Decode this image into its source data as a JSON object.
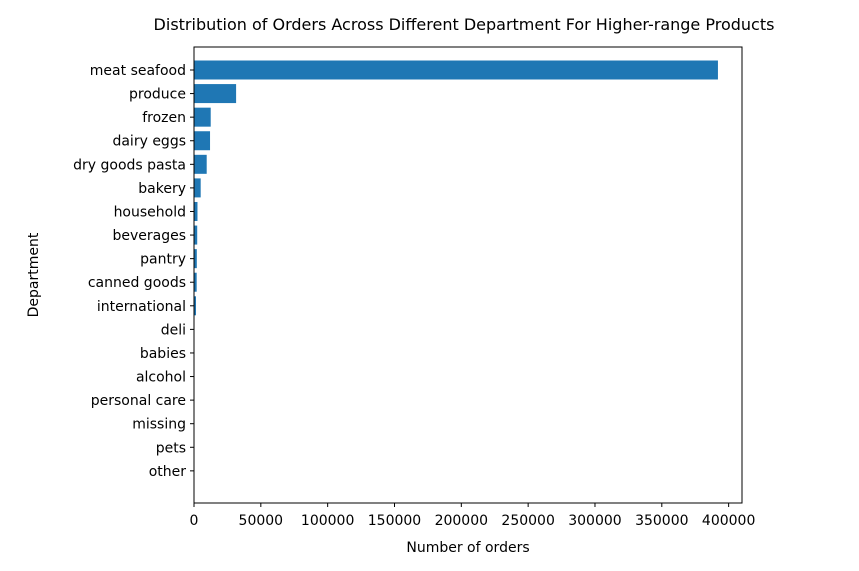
{
  "chart_data": {
    "type": "bar",
    "orientation": "horizontal",
    "title": "Distribution of Orders Across Different Department For Higher-range Products",
    "xlabel": "Number of orders",
    "ylabel": "Department",
    "xlim": [
      0,
      410000
    ],
    "x_ticks": [
      0,
      50000,
      100000,
      150000,
      200000,
      250000,
      300000,
      350000,
      400000
    ],
    "x_tick_labels": [
      "0",
      "50000",
      "100000",
      "150000",
      "200000",
      "250000",
      "300000",
      "350000",
      "400000"
    ],
    "grid": false,
    "bar_color": "#1f77b4",
    "categories": [
      "meat seafood",
      "produce",
      "frozen",
      "dairy eggs",
      "dry goods pasta",
      "bakery",
      "household",
      "beverages",
      "pantry",
      "canned goods",
      "international",
      "deli",
      "babies",
      "alcohol",
      "personal care",
      "missing",
      "pets",
      "other"
    ],
    "values": [
      392000,
      31500,
      12500,
      12000,
      9500,
      5000,
      2600,
      2400,
      2100,
      2000,
      1500,
      300,
      150,
      120,
      100,
      80,
      60,
      40
    ]
  }
}
